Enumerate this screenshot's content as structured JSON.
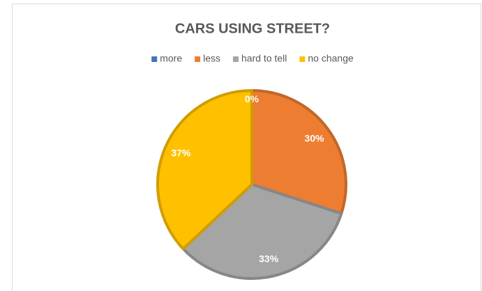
{
  "chart_data": {
    "type": "pie",
    "title": "CARS USING STREET?",
    "categories": [
      "more",
      "less",
      "hard to tell",
      "no change"
    ],
    "values": [
      0,
      30,
      33,
      37
    ],
    "value_labels": [
      "0%",
      "30%",
      "33%",
      "37%"
    ],
    "colors": [
      "#4472c4",
      "#ed7d31",
      "#a5a5a5",
      "#ffc000"
    ],
    "legend": "top"
  }
}
